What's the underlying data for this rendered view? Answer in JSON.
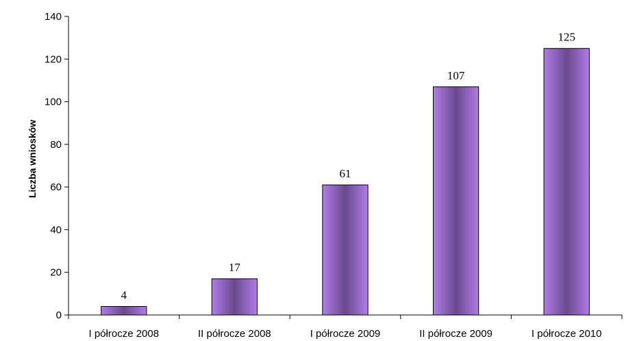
{
  "chart_data": {
    "type": "bar",
    "title": "",
    "xlabel": "",
    "ylabel": "Liczba wniosków",
    "categories": [
      "I półrocze 2008",
      "II półrocze 2008",
      "I półrocze 2009",
      "II półrocze 2009",
      "I półrocze 2010"
    ],
    "values": [
      4,
      17,
      61,
      107,
      125
    ],
    "ylim": [
      0,
      140
    ],
    "yticks": [
      0,
      20,
      40,
      60,
      80,
      100,
      120,
      140
    ],
    "grid": false,
    "legend": "none",
    "bar_color": "#b07ce8",
    "bar_shade_color": "#6a4a8e"
  }
}
